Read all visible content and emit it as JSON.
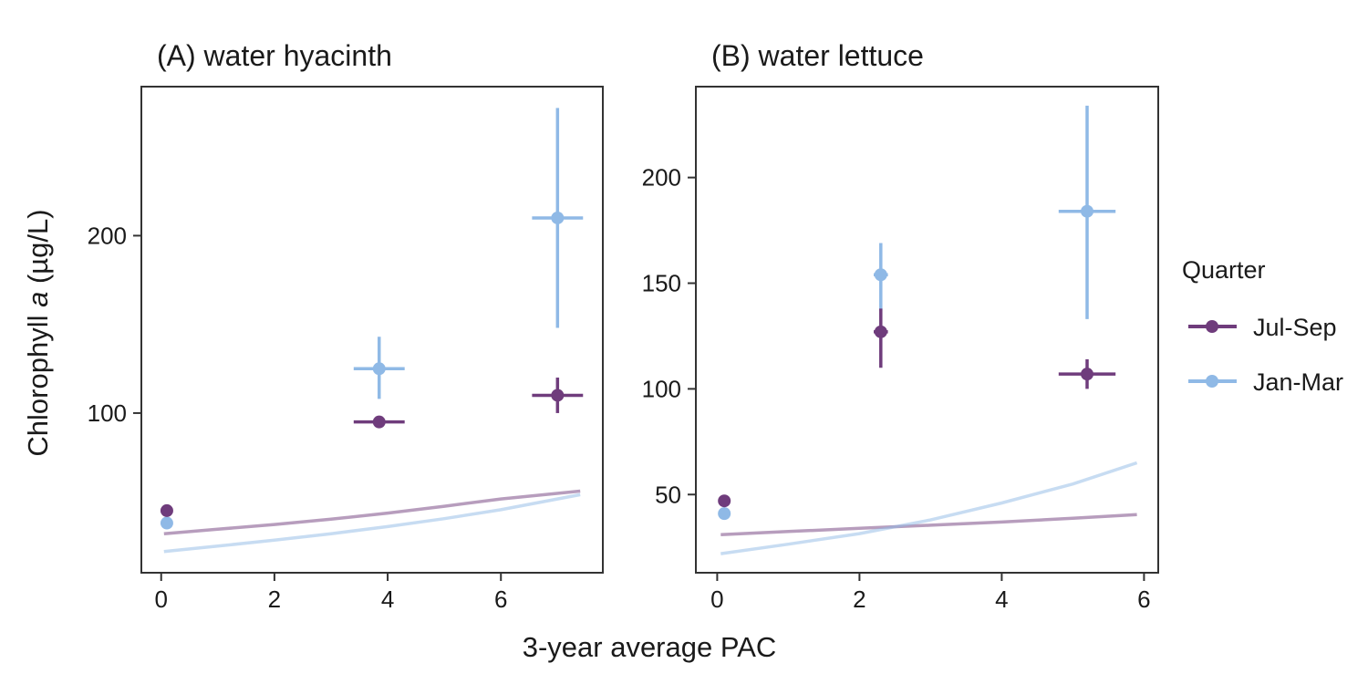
{
  "figure": {
    "xlabel": "3-year average PAC",
    "ylabel_prefix": "Chlorophyll ",
    "ylabel_italic": "a",
    "ylabel_suffix": " (µg/L)"
  },
  "legend": {
    "title": "Quarter",
    "items": [
      {
        "label": "Jul-Sep",
        "color": "#6f3c7c"
      },
      {
        "label": "Jan-Mar",
        "color": "#8fb9e6"
      }
    ]
  },
  "chart_data": [
    {
      "type": "scatter",
      "title": "(A) water hyacinth",
      "xlim": [
        -0.35,
        7.8
      ],
      "ylim": [
        10,
        284
      ],
      "xticks": [
        0,
        2,
        4,
        6
      ],
      "yticks": [
        100,
        200
      ],
      "series": [
        {
          "name": "Jul-Sep",
          "color": "#6f3c7c",
          "points": [
            {
              "x": 0.1,
              "y": 45
            },
            {
              "x": 3.85,
              "y": 95,
              "xerr": [
                3.4,
                4.3
              ],
              "yerr": [
                95,
                95
              ]
            },
            {
              "x": 7.0,
              "y": 110,
              "xerr": [
                6.55,
                7.45
              ],
              "yerr": [
                100,
                120
              ]
            }
          ],
          "curve": [
            [
              0.05,
              32
            ],
            [
              1,
              34.5
            ],
            [
              2,
              37.2
            ],
            [
              3,
              40.2
            ],
            [
              4,
              43.6
            ],
            [
              5,
              47.5
            ],
            [
              6,
              51.6
            ],
            [
              7.4,
              56
            ]
          ]
        },
        {
          "name": "Jan-Mar",
          "color": "#8fb9e6",
          "points": [
            {
              "x": 0.1,
              "y": 38
            },
            {
              "x": 3.85,
              "y": 125,
              "xerr": [
                3.4,
                4.3
              ],
              "yerr": [
                108,
                143
              ]
            },
            {
              "x": 7.0,
              "y": 210,
              "xerr": [
                6.55,
                7.45
              ],
              "yerr": [
                148,
                272
              ]
            }
          ],
          "curve": [
            [
              0.05,
              22
            ],
            [
              1,
              25
            ],
            [
              2,
              28.4
            ],
            [
              3,
              32
            ],
            [
              4,
              36
            ],
            [
              5,
              40.5
            ],
            [
              6,
              45.5
            ],
            [
              7.4,
              54
            ]
          ]
        }
      ]
    },
    {
      "type": "scatter",
      "title": "(B) water lettuce",
      "xlim": [
        -0.3,
        6.2
      ],
      "ylim": [
        13,
        243
      ],
      "xticks": [
        0,
        2,
        4,
        6
      ],
      "yticks": [
        50,
        100,
        150,
        200
      ],
      "series": [
        {
          "name": "Jul-Sep",
          "color": "#6f3c7c",
          "points": [
            {
              "x": 0.1,
              "y": 47
            },
            {
              "x": 2.3,
              "y": 127,
              "xerr": [
                2.2,
                2.4
              ],
              "yerr": [
                110,
                138
              ]
            },
            {
              "x": 5.2,
              "y": 107,
              "xerr": [
                4.8,
                5.6
              ],
              "yerr": [
                100,
                114
              ]
            }
          ],
          "curve": [
            [
              0.05,
              31
            ],
            [
              1,
              32.5
            ],
            [
              2,
              34
            ],
            [
              3,
              35.5
            ],
            [
              4,
              37
            ],
            [
              5,
              38.8
            ],
            [
              5.9,
              40.5
            ]
          ]
        },
        {
          "name": "Jan-Mar",
          "color": "#8fb9e6",
          "points": [
            {
              "x": 0.1,
              "y": 41
            },
            {
              "x": 2.3,
              "y": 154,
              "xerr": [
                2.2,
                2.4
              ],
              "yerr": [
                137,
                169
              ]
            },
            {
              "x": 5.2,
              "y": 184,
              "xerr": [
                4.8,
                5.6
              ],
              "yerr": [
                133,
                234
              ]
            }
          ],
          "curve": [
            [
              0.05,
              22
            ],
            [
              1,
              26.5
            ],
            [
              2,
              31.5
            ],
            [
              3,
              38
            ],
            [
              4,
              46
            ],
            [
              5,
              55
            ],
            [
              5.9,
              65
            ]
          ]
        }
      ]
    }
  ]
}
